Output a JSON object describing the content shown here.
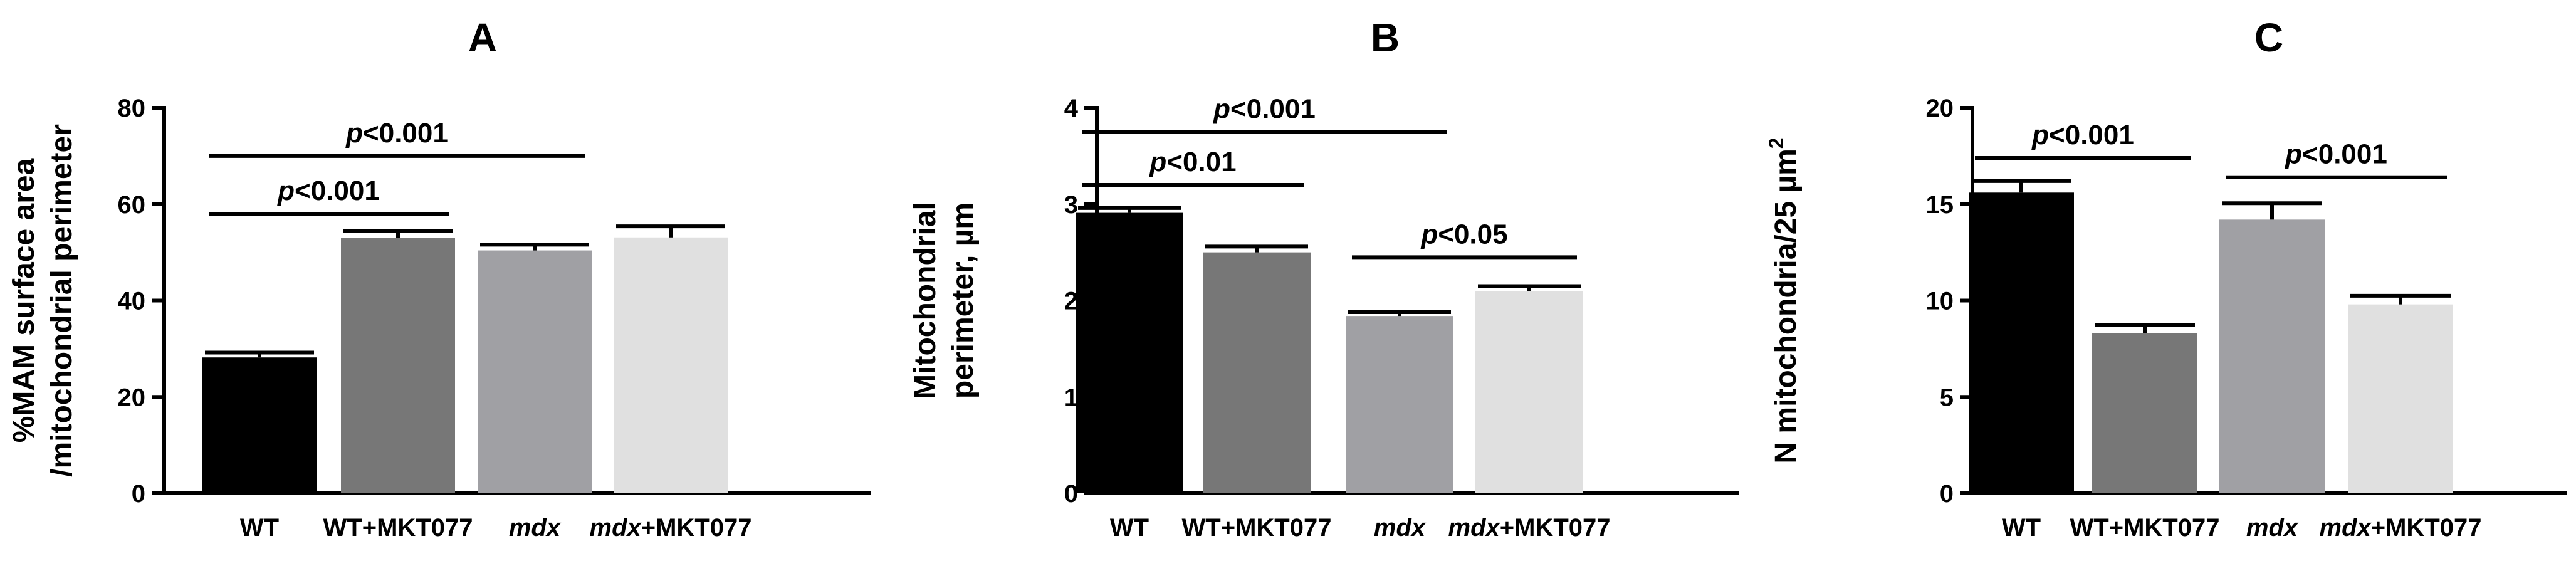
{
  "chart_data": [
    {
      "panel": "A",
      "type": "bar",
      "categories": [
        "WT",
        "WT+MKT077",
        "mdx",
        "mdx+MKT077"
      ],
      "category_italic_prefix": [
        "",
        "",
        "mdx",
        "mdx"
      ],
      "category_rest": [
        "WT",
        "WT+MKT077",
        "",
        "+MKT077"
      ],
      "values": [
        28.2,
        53.0,
        50.4,
        53.1
      ],
      "errors": [
        1.0,
        1.5,
        1.2,
        2.3
      ],
      "colors": [
        "#000000",
        "#777777",
        "#a0a0a4",
        "#e0e0e0"
      ],
      "ylabel_lines": [
        "%MAM surface area",
        "/mitochondrial perimeter"
      ],
      "ylim": [
        0,
        80
      ],
      "yticks": [
        0,
        20,
        40,
        60,
        80
      ],
      "significance": [
        {
          "from": 0,
          "to": 1,
          "y": 58,
          "p_italic": "p",
          "p_rest": "<0.001"
        },
        {
          "from": 0,
          "to": 2,
          "y": 70,
          "p_italic": "p",
          "p_rest": "<0.001"
        }
      ]
    },
    {
      "panel": "B",
      "type": "bar",
      "categories": [
        "WT",
        "WT+MKT077",
        "mdx",
        "mdx+MKT077"
      ],
      "category_italic_prefix": [
        "",
        "",
        "mdx",
        "mdx"
      ],
      "category_rest": [
        "WT",
        "WT+MKT077",
        "",
        "+MKT077"
      ],
      "values": [
        2.91,
        2.5,
        1.84,
        2.1
      ],
      "errors": [
        0.05,
        0.06,
        0.04,
        0.05
      ],
      "colors": [
        "#000000",
        "#777777",
        "#a0a0a4",
        "#e0e0e0"
      ],
      "ylabel_lines": [
        "Mitochondrial",
        "perimeter, µm"
      ],
      "ylim": [
        0,
        4
      ],
      "yticks": [
        0,
        1,
        2,
        3,
        4
      ],
      "significance": [
        {
          "from": 0,
          "to": 1,
          "y": 3.2,
          "p_italic": "p",
          "p_rest": "<0.01"
        },
        {
          "from": 0,
          "to": 2,
          "y": 3.75,
          "p_italic": "p",
          "p_rest": "<0.001"
        },
        {
          "from": 2,
          "to": 3,
          "y": 2.45,
          "p_italic": "p",
          "p_rest": "<0.05"
        }
      ]
    },
    {
      "panel": "C",
      "type": "bar",
      "categories": [
        "WT",
        "WT+MKT077",
        "mdx",
        "mdx+MKT077"
      ],
      "category_italic_prefix": [
        "",
        "",
        "mdx",
        "mdx"
      ],
      "category_rest": [
        "WT",
        "WT+MKT077",
        "",
        "+MKT077"
      ],
      "values": [
        15.6,
        8.3,
        14.2,
        9.8
      ],
      "errors": [
        0.6,
        0.45,
        0.85,
        0.45
      ],
      "colors": [
        "#000000",
        "#777777",
        "#a0a0a4",
        "#e0e0e0"
      ],
      "ylabel_lines": [
        "N mitochondria/25 µm²"
      ],
      "ylabel_main": "N mitochondria/25 µm",
      "ylabel_sup": "2",
      "ylim": [
        0,
        20
      ],
      "yticks": [
        0,
        5,
        10,
        15,
        20
      ],
      "significance": [
        {
          "from": 0,
          "to": 1,
          "y": 17.4,
          "p_italic": "p",
          "p_rest": "<0.001"
        },
        {
          "from": 2,
          "to": 3,
          "y": 16.4,
          "p_italic": "p",
          "p_rest": "<0.001"
        }
      ]
    }
  ]
}
